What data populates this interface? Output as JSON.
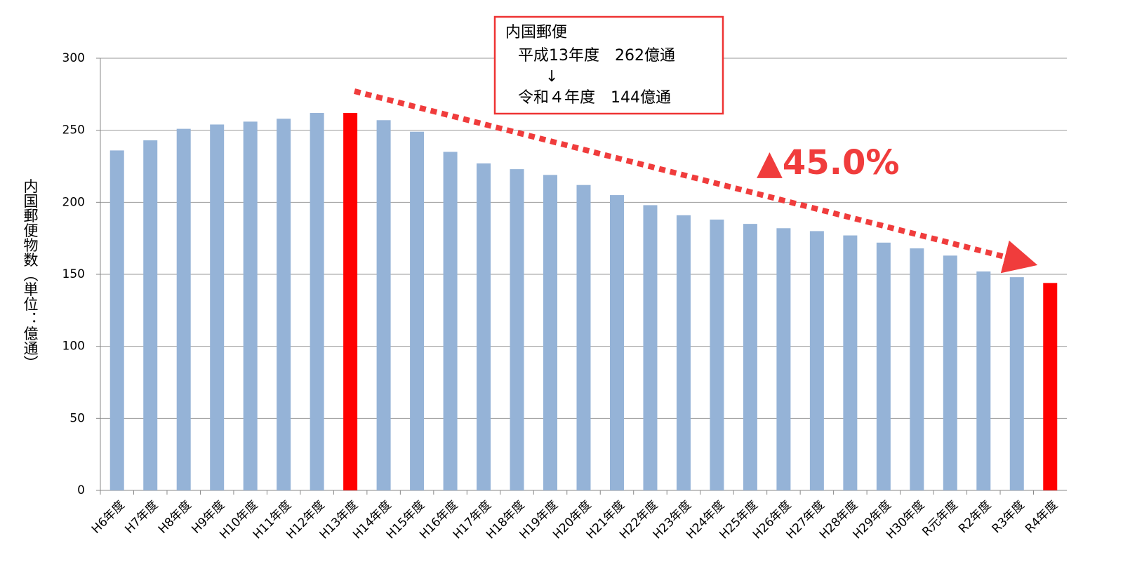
{
  "chart_data": {
    "type": "bar",
    "y_label": "内国郵便物数（単位：億通）",
    "categories": [
      "H6年度",
      "H7年度",
      "H8年度",
      "H9年度",
      "H10年度",
      "H11年度",
      "H12年度",
      "H13年度",
      "H14年度",
      "H15年度",
      "H16年度",
      "H17年度",
      "H18年度",
      "H19年度",
      "H20年度",
      "H21年度",
      "H22年度",
      "H23年度",
      "H24年度",
      "H25年度",
      "H26年度",
      "H27年度",
      "H28年度",
      "H29年度",
      "H30年度",
      "R元年度",
      "R2年度",
      "R3年度",
      "R4年度"
    ],
    "values": [
      236,
      243,
      251,
      254,
      256,
      258,
      262,
      262,
      257,
      249,
      235,
      227,
      223,
      219,
      212,
      205,
      198,
      191,
      188,
      185,
      182,
      180,
      177,
      172,
      168,
      163,
      152,
      148,
      144
    ],
    "colors": [
      "#95b3d7",
      "#95b3d7",
      "#95b3d7",
      "#95b3d7",
      "#95b3d7",
      "#95b3d7",
      "#95b3d7",
      "#ff0000",
      "#95b3d7",
      "#95b3d7",
      "#95b3d7",
      "#95b3d7",
      "#95b3d7",
      "#95b3d7",
      "#95b3d7",
      "#95b3d7",
      "#95b3d7",
      "#95b3d7",
      "#95b3d7",
      "#95b3d7",
      "#95b3d7",
      "#95b3d7",
      "#95b3d7",
      "#95b3d7",
      "#95b3d7",
      "#95b3d7",
      "#95b3d7",
      "#95b3d7",
      "#ff0000"
    ],
    "ylim": [
      0,
      300
    ],
    "yticks": [
      0,
      50,
      100,
      150,
      200,
      250,
      300
    ],
    "grid": true,
    "annotation_box": [
      "内国郵便",
      "平成13年度　262億通",
      "↓",
      "令和４年度　144億通"
    ],
    "change_label": "▲45.0%"
  }
}
